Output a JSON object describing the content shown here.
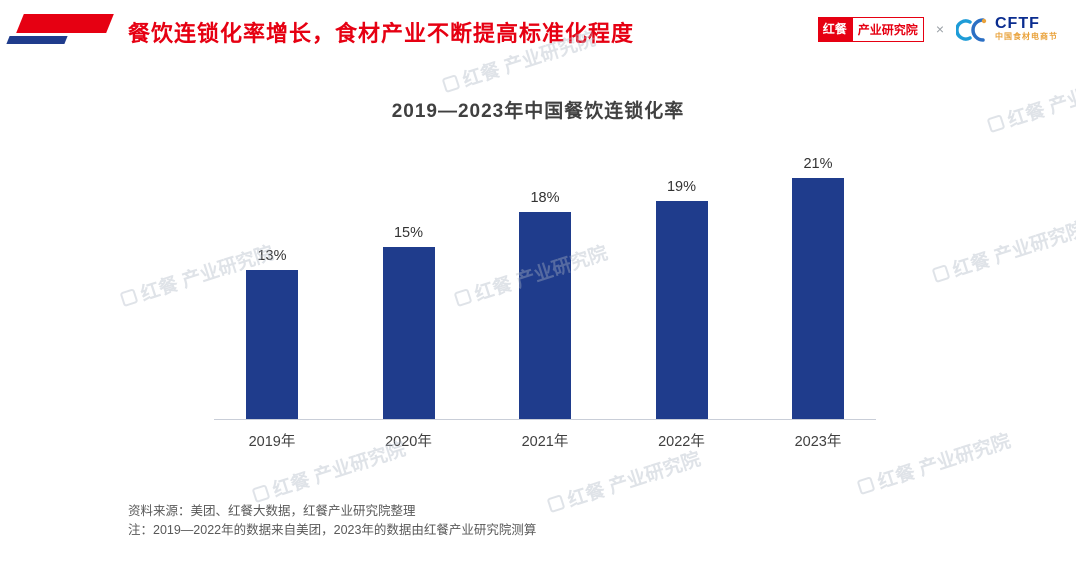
{
  "header": {
    "title": "餐饮连锁化率增长，食材产业不断提高标准化程度",
    "logo_left": {
      "part1": "红餐",
      "part2": "产业研究院"
    },
    "separator": "×",
    "logo_right": {
      "name": "CFTF",
      "subtitle": "中国食材电商节"
    }
  },
  "chart_data": {
    "type": "bar",
    "title": "2019—2023年中国餐饮连锁化率",
    "categories": [
      "2019年",
      "2020年",
      "2021年",
      "2022年",
      "2023年"
    ],
    "values": [
      13,
      15,
      18,
      19,
      21
    ],
    "labels": [
      "13%",
      "15%",
      "18%",
      "19%",
      "21%"
    ],
    "unit": "%",
    "ylim": [
      0,
      23
    ],
    "grid": false,
    "legend": "none",
    "bar_color": "#1F3C8C"
  },
  "footnotes": {
    "source": "资料来源：美团、红餐大数据，红餐产业研究院整理",
    "note": "注：2019—2022年的数据来自美团，2023年的数据由红餐产业研究院测算"
  },
  "watermark": {
    "text": "红餐 产业研究院"
  },
  "colors": {
    "accent_red": "#E60012",
    "bar_blue": "#1F3C8C"
  }
}
